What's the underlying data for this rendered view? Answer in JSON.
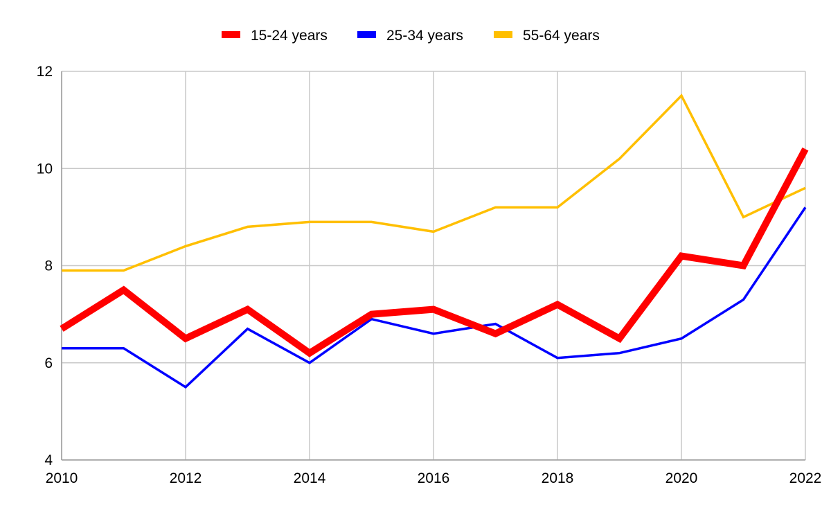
{
  "chart_data": {
    "type": "line",
    "title": "",
    "xlabel": "",
    "ylabel": "",
    "x": [
      2010,
      2011,
      2012,
      2013,
      2014,
      2015,
      2016,
      2017,
      2018,
      2019,
      2020,
      2021,
      2022
    ],
    "x_ticks": [
      "2010",
      "2012",
      "2014",
      "2016",
      "2018",
      "2020",
      "2022"
    ],
    "y_ticks": [
      "4",
      "6",
      "8",
      "10",
      "12"
    ],
    "xlim": [
      2010,
      2022
    ],
    "ylim": [
      4,
      12
    ],
    "grid": true,
    "legend_position": "top-center",
    "series": [
      {
        "name": "15-24 years",
        "color": "#ff0000",
        "values": [
          6.7,
          7.5,
          6.5,
          7.1,
          6.2,
          7.0,
          7.1,
          6.6,
          7.2,
          6.5,
          8.2,
          8.0,
          10.4
        ]
      },
      {
        "name": "25-34 years",
        "color": "#0000ff",
        "values": [
          6.3,
          6.3,
          5.5,
          6.7,
          6.0,
          6.9,
          6.6,
          6.8,
          6.1,
          6.2,
          6.5,
          7.3,
          9.2
        ]
      },
      {
        "name": "55-64 years",
        "color": "#ffbf00",
        "values": [
          7.9,
          7.9,
          8.4,
          8.8,
          8.9,
          8.9,
          8.7,
          9.2,
          9.2,
          10.2,
          11.5,
          9.0,
          9.6
        ]
      }
    ]
  }
}
